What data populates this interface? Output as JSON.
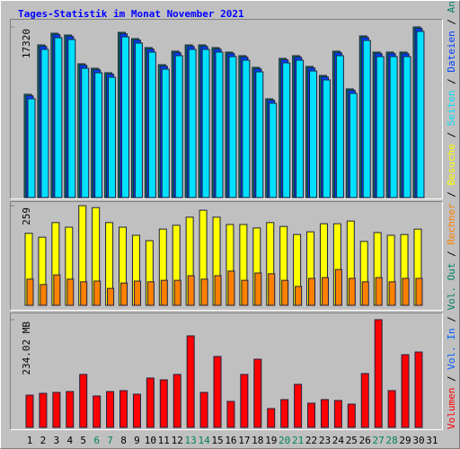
{
  "chart_data": [
    {
      "type": "bar",
      "title": "Tages-Statistik im Monat November 2021",
      "ylim": [
        0,
        17320
      ],
      "yticks": [
        17320
      ],
      "series": [
        {
          "name": "Anfragen",
          "color": "#008060",
          "values": [
            10483,
            15496,
            16681,
            16499,
            13582,
            13126,
            12670,
            16773,
            16135,
            15223,
            13491,
            14858,
            15496,
            15496,
            15223,
            14767,
            14402,
            13217,
            10027,
            14129,
            14402,
            13309,
            12397,
            14858,
            11030,
            16408,
            14767,
            14767,
            14767,
            17320,
            null
          ]
        },
        {
          "name": "Dateien",
          "color": "#0040ff",
          "values": [
            10328,
            15341,
            16526,
            16344,
            13427,
            12971,
            12515,
            16618,
            15980,
            15068,
            13336,
            14703,
            15341,
            15341,
            15068,
            14612,
            14247,
            13062,
            9872,
            13974,
            14247,
            13154,
            12242,
            14703,
            10875,
            16253,
            14612,
            14612,
            14612,
            17165,
            null
          ]
        },
        {
          "name": "Seiten",
          "color": "#00e0ff",
          "values": [
            10028,
            15041,
            16226,
            16044,
            13127,
            12671,
            12215,
            16318,
            15680,
            14768,
            13036,
            14403,
            15041,
            15041,
            14768,
            14312,
            13947,
            12762,
            9572,
            13674,
            13947,
            12854,
            11942,
            14403,
            10575,
            15953,
            14312,
            14312,
            14312,
            16865,
            null
          ]
        }
      ]
    },
    {
      "type": "bar",
      "ylim": [
        0,
        259
      ],
      "yticks": [
        259
      ],
      "series": [
        {
          "name": "Besuche",
          "color": "#ffff00",
          "values": [
            187,
            177,
            215,
            203,
            259,
            254,
            215,
            203,
            182,
            168,
            198,
            208,
            229,
            247,
            229,
            210,
            210,
            201,
            215,
            205,
            184,
            191,
            212,
            212,
            219,
            166,
            189,
            182,
            184,
            198,
            null
          ]
        },
        {
          "name": "Rechner",
          "color": "#ff8000",
          "values": [
            68,
            54,
            79,
            68,
            61,
            63,
            44,
            58,
            63,
            61,
            65,
            65,
            77,
            68,
            77,
            89,
            65,
            84,
            82,
            65,
            49,
            70,
            72,
            93,
            70,
            61,
            72,
            61,
            70,
            70,
            null
          ]
        }
      ]
    },
    {
      "type": "bar",
      "ylim": [
        0,
        234.02
      ],
      "yticks": [
        {
          "value": 234.02,
          "label": "234.02 MB"
        }
      ],
      "categories": [
        "1",
        "2",
        "3",
        "4",
        "5",
        "6",
        "7",
        "8",
        "9",
        "10",
        "11",
        "12",
        "13",
        "14",
        "15",
        "16",
        "17",
        "18",
        "19",
        "20",
        "21",
        "22",
        "23",
        "24",
        "25",
        "26",
        "27",
        "28",
        "29",
        "30",
        "31"
      ],
      "category_colors": [
        "#000000",
        "#000000",
        "#000000",
        "#000000",
        "#000000",
        "#008060",
        "#008060",
        "#000000",
        "#000000",
        "#000000",
        "#000000",
        "#000000",
        "#008060",
        "#008060",
        "#000000",
        "#000000",
        "#000000",
        "#000000",
        "#000000",
        "#008060",
        "#008060",
        "#000000",
        "#000000",
        "#000000",
        "#000000",
        "#000000",
        "#008060",
        "#008060",
        "#000000",
        "#000000",
        "#000000"
      ],
      "series": [
        {
          "name": "Vol. Out",
          "color": "#008060",
          "values": [
            null,
            null,
            null,
            null,
            null,
            null,
            null,
            null,
            null,
            null,
            null,
            null,
            null,
            null,
            null,
            null,
            null,
            null,
            null,
            null,
            null,
            null,
            null,
            null,
            null,
            null,
            null,
            null,
            null,
            null,
            null
          ]
        },
        {
          "name": "Vol. In",
          "color": "#0060ff",
          "values": [
            null,
            null,
            null,
            null,
            null,
            null,
            null,
            null,
            null,
            null,
            null,
            null,
            null,
            null,
            null,
            null,
            null,
            null,
            null,
            null,
            null,
            null,
            null,
            null,
            null,
            null,
            null,
            null,
            null,
            null,
            null
          ]
        },
        {
          "name": "Volumen",
          "color": "#ff0000",
          "values": [
            70.2,
            74.1,
            76.1,
            78.0,
            115.1,
            68.3,
            78.0,
            80.0,
            72.2,
            107.3,
            103.4,
            115.1,
            198.9,
            76.1,
            154.1,
            56.6,
            115.1,
            148.2,
            41.0,
            60.5,
            93.6,
            52.7,
            60.5,
            58.5,
            50.7,
            117.0,
            234.02,
            80.0,
            158.0,
            163.8,
            null
          ]
        }
      ]
    }
  ],
  "legend_separator": " / "
}
